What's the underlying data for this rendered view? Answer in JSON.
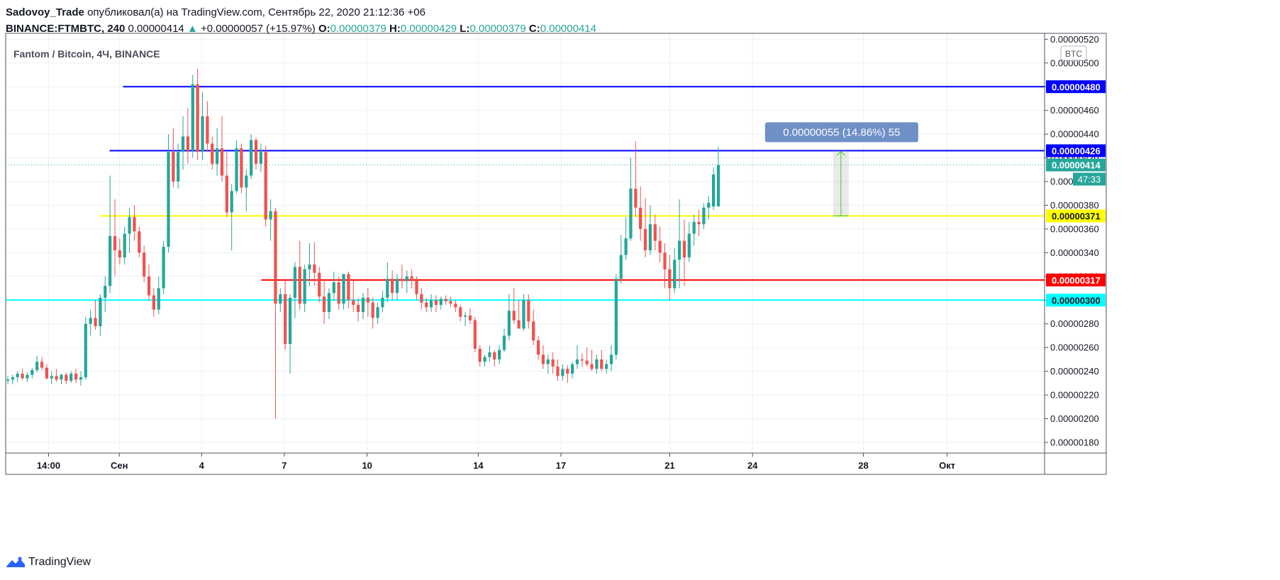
{
  "header": {
    "author": "Sadovoy_Trade",
    "published_text": "опубликовал(а) на TradingView.com, Сентябрь 22, 2020 21:12:36 +06",
    "symbol": "BINANCE:FTMBTC, 240",
    "last_price": "0.00000414",
    "change_arrow": "▲",
    "change": "+0.00000057 (+15.97%)",
    "o_label": "O:",
    "o_value": "0.00000379",
    "h_label": "H:",
    "h_value": "0.00000429",
    "l_label": "L:",
    "l_value": "0.00000379",
    "c_label": "C:",
    "c_value": "0.00000414"
  },
  "legend_title": "Fantom / Bitcoin, 4Ч, BINANCE",
  "currency_badge": "BTC",
  "measure_label": "0.00000055 (14.86%) 55",
  "countdown": "47:33",
  "footer": {
    "brand": "TradingView",
    "logo_icon": "tradingview-logo-icon"
  },
  "colors": {
    "up": "#26a69a",
    "down": "#ef5350",
    "blue_line": "#0000ff",
    "yellow_line": "#ffff00",
    "red_line": "#ff0000",
    "cyan_line": "#00ffff",
    "measure": "#6f8fc7"
  },
  "chart_data": {
    "type": "candlestick",
    "title": "Fantom / Bitcoin, 4Ч, BINANCE",
    "y_axis": {
      "ticks": [
        "0.00000180",
        "0.00000200",
        "0.00000220",
        "0.00000240",
        "0.00000260",
        "0.00000280",
        "0.00000300",
        "0.00000320",
        "0.00000340",
        "0.00000360",
        "0.00000380",
        "0.00000400",
        "0.00000420",
        "0.00000440",
        "0.00000460",
        "0.00000480",
        "0.00000500",
        "0.00000520"
      ],
      "range": [
        1.71e-06,
        5.25e-06
      ],
      "position": "right"
    },
    "x_axis": {
      "ticks": [
        {
          "label": "14:00",
          "x": 0.0413
        },
        {
          "label": "Сен",
          "x": 0.1094
        },
        {
          "label": "4",
          "x": 0.1886
        },
        {
          "label": "7",
          "x": 0.2682
        },
        {
          "label": "10",
          "x": 0.3479
        },
        {
          "label": "14",
          "x": 0.4549
        },
        {
          "label": "17",
          "x": 0.5345
        },
        {
          "label": "21",
          "x": 0.6392
        },
        {
          "label": "24",
          "x": 0.7189
        },
        {
          "label": "28",
          "x": 0.8256
        },
        {
          "label": "Окт",
          "x": 0.9062
        }
      ]
    },
    "horizontal_levels": [
      {
        "value": 4.8e-06,
        "label": "0.00000480",
        "color": "#0000ff",
        "start_x": 0.113
      },
      {
        "value": 4.26e-06,
        "label": "0.00000426",
        "color": "#0000ff",
        "start_x": 0.1
      },
      {
        "value": 3.71e-06,
        "label": "0.00000371",
        "color": "#ffff00",
        "start_x": 0.091
      },
      {
        "value": 3.17e-06,
        "label": "0.00000317",
        "color": "#ff0000",
        "start_x": 0.246
      },
      {
        "value": 3e-06,
        "label": "0.00000300",
        "color": "#00ffff",
        "start_x": 0.0
      }
    ],
    "last_price": {
      "value": 4.14e-06,
      "label": "0.00000414",
      "color": "#26a69a"
    },
    "price_range_measure": {
      "from": 3.71e-06,
      "to": 4.26e-06,
      "x_from": 0.7966,
      "x_to": 0.8114,
      "label": "0.00000055 (14.86%) 55"
    },
    "candles": [
      [
        2.32e-06,
        2.36e-06,
        2.29e-06,
        2.33e-06
      ],
      [
        2.33e-06,
        2.37e-06,
        2.29e-06,
        2.35e-06
      ],
      [
        2.35e-06,
        2.4e-06,
        2.31e-06,
        2.38e-06
      ],
      [
        2.38e-06,
        2.42e-06,
        2.33e-06,
        2.34e-06
      ],
      [
        2.34e-06,
        2.39e-06,
        2.31e-06,
        2.37e-06
      ],
      [
        2.37e-06,
        2.43e-06,
        2.34e-06,
        2.41e-06
      ],
      [
        2.41e-06,
        2.53e-06,
        2.39e-06,
        2.48e-06
      ],
      [
        2.48e-06,
        2.52e-06,
        2.41e-06,
        2.43e-06
      ],
      [
        2.43e-06,
        2.46e-06,
        2.33e-06,
        2.34e-06
      ],
      [
        2.34e-06,
        2.4e-06,
        2.29e-06,
        2.36e-06
      ],
      [
        2.36e-06,
        2.42e-06,
        2.31e-06,
        2.33e-06
      ],
      [
        2.33e-06,
        2.38e-06,
        2.29e-06,
        2.37e-06
      ],
      [
        2.37e-06,
        2.39e-06,
        2.29e-06,
        2.32e-06
      ],
      [
        2.32e-06,
        2.4e-06,
        2.3e-06,
        2.38e-06
      ],
      [
        2.38e-06,
        2.42e-06,
        2.3e-06,
        2.33e-06
      ],
      [
        2.33e-06,
        2.4e-06,
        2.28e-06,
        2.35e-06
      ],
      [
        2.35e-06,
        2.86e-06,
        2.33e-06,
        2.8e-06
      ],
      [
        2.8e-06,
        2.92e-06,
        2.7e-06,
        2.85e-06
      ],
      [
        2.85e-06,
        3e-06,
        2.75e-06,
        2.78e-06
      ],
      [
        2.78e-06,
        3.05e-06,
        2.7e-06,
        3.02e-06
      ],
      [
        3.02e-06,
        3.2e-06,
        2.9e-06,
        3.12e-06
      ],
      [
        3.12e-06,
        4.05e-06,
        3.06e-06,
        3.54e-06
      ],
      [
        3.54e-06,
        3.85e-06,
        3.2e-06,
        3.42e-06
      ],
      [
        3.42e-06,
        3.52e-06,
        3.3e-06,
        3.36e-06
      ],
      [
        3.36e-06,
        3.62e-06,
        3.3e-06,
        3.56e-06
      ],
      [
        3.56e-06,
        3.78e-06,
        3.4e-06,
        3.7e-06
      ],
      [
        3.7e-06,
        3.8e-06,
        3.5e-06,
        3.58e-06
      ],
      [
        3.58e-06,
        3.62e-06,
        3.36e-06,
        3.4e-06
      ],
      [
        3.4e-06,
        3.46e-06,
        3.15e-06,
        3.2e-06
      ],
      [
        3.2e-06,
        3.3e-06,
        3e-06,
        3.04e-06
      ],
      [
        3.04e-06,
        3.1e-06,
        2.86e-06,
        2.92e-06
      ],
      [
        2.92e-06,
        3.2e-06,
        2.88e-06,
        3.1e-06
      ],
      [
        3.1e-06,
        3.5e-06,
        3.05e-06,
        3.45e-06
      ],
      [
        3.45e-06,
        4.4e-06,
        3.4e-06,
        4.25e-06
      ],
      [
        4.25e-06,
        4.45e-06,
        3.95e-06,
        4e-06
      ],
      [
        4e-06,
        4.32e-06,
        3.94e-06,
        4.25e-06
      ],
      [
        4.25e-06,
        4.55e-06,
        4.1e-06,
        4.38e-06
      ],
      [
        4.38e-06,
        4.62e-06,
        4.15e-06,
        4.26e-06
      ],
      [
        4.26e-06,
        4.9e-06,
        4.2e-06,
        4.82e-06
      ],
      [
        4.82e-06,
        4.95e-06,
        4.18e-06,
        4.25e-06
      ],
      [
        4.25e-06,
        4.75e-06,
        4.18e-06,
        4.55e-06
      ],
      [
        4.55e-06,
        4.68e-06,
        4.25e-06,
        4.32e-06
      ],
      [
        4.32e-06,
        4.38e-06,
        4.1e-06,
        4.15e-06
      ],
      [
        4.15e-06,
        4.45e-06,
        4.05e-06,
        4.28e-06
      ],
      [
        4.28e-06,
        4.55e-06,
        4e-06,
        4.05e-06
      ],
      [
        4.05e-06,
        4.25e-06,
        3.7e-06,
        3.74e-06
      ],
      [
        3.74e-06,
        3.98e-06,
        3.42e-06,
        3.92e-06
      ],
      [
        3.92e-06,
        4.35e-06,
        3.9e-06,
        4.28e-06
      ],
      [
        4.28e-06,
        4.32e-06,
        3.9e-06,
        3.95e-06
      ],
      [
        3.95e-06,
        4.1e-06,
        3.75e-06,
        4.05e-06
      ],
      [
        4.05e-06,
        4.4e-06,
        4.02e-06,
        4.35e-06
      ],
      [
        4.35e-06,
        4.37e-06,
        4.1e-06,
        4.15e-06
      ],
      [
        4.15e-06,
        4.32e-06,
        4.08e-06,
        4.25e-06
      ],
      [
        4.25e-06,
        4.3e-06,
        3.62e-06,
        3.68e-06
      ],
      [
        3.68e-06,
        3.85e-06,
        3.5e-06,
        3.75e-06
      ],
      [
        3.75e-06,
        3.78e-06,
        2e-06,
        2.97e-06
      ],
      [
        2.97e-06,
        3.1e-06,
        2.9e-06,
        3.05e-06
      ],
      [
        3.05e-06,
        3.18e-06,
        2.58e-06,
        2.63e-06
      ],
      [
        2.63e-06,
        3.05e-06,
        2.38e-06,
        3.02e-06
      ],
      [
        3.02e-06,
        3.32e-06,
        2.85e-06,
        3.28e-06
      ],
      [
        3.28e-06,
        3.5e-06,
        2.92e-06,
        2.97e-06
      ],
      [
        2.97e-06,
        3.3e-06,
        2.9e-06,
        3.26e-06
      ],
      [
        3.26e-06,
        3.48e-06,
        3.12e-06,
        3.3e-06
      ],
      [
        3.3e-06,
        3.49e-06,
        3.12e-06,
        3.23e-06
      ],
      [
        3.23e-06,
        3.28e-06,
        2.98e-06,
        3.03e-06
      ],
      [
        3.03e-06,
        3.16e-06,
        2.8e-06,
        2.9e-06
      ],
      [
        2.9e-06,
        3.1e-06,
        2.84e-06,
        3.06e-06
      ],
      [
        3.06e-06,
        3.24e-06,
        3e-06,
        3.15e-06
      ],
      [
        3.15e-06,
        3.2e-06,
        2.92e-06,
        2.97e-06
      ],
      [
        2.97e-06,
        3.22e-06,
        2.92e-06,
        3.22e-06
      ],
      [
        3.22e-06,
        3.24e-06,
        2.93e-06,
        3e-06
      ],
      [
        3e-06,
        3.18e-06,
        2.9e-06,
        2.96e-06
      ],
      [
        2.96e-06,
        3.02e-06,
        2.82e-06,
        2.9e-06
      ],
      [
        2.9e-06,
        3.06e-06,
        2.84e-06,
        3.02e-06
      ],
      [
        3.02e-06,
        3.1e-06,
        2.86e-06,
        2.98e-06
      ],
      [
        2.98e-06,
        3.02e-06,
        2.76e-06,
        2.85e-06
      ],
      [
        2.85e-06,
        2.98e-06,
        2.8e-06,
        2.94e-06
      ],
      [
        2.94e-06,
        3.08e-06,
        2.9e-06,
        3.02e-06
      ],
      [
        3.02e-06,
        3.32e-06,
        2.98e-06,
        3.18e-06
      ],
      [
        3.18e-06,
        3.25e-06,
        3e-06,
        3.06e-06
      ],
      [
        3.06e-06,
        3.22e-06,
        3e-06,
        3.18e-06
      ],
      [
        3.18e-06,
        3.3e-06,
        3.1e-06,
        3.16e-06
      ],
      [
        3.16e-06,
        3.25e-06,
        3.06e-06,
        3.2e-06
      ],
      [
        3.2e-06,
        3.26e-06,
        3.1e-06,
        3.18e-06
      ],
      [
        3.18e-06,
        3.2e-06,
        3e-06,
        3.05e-06
      ],
      [
        3.05e-06,
        3.1e-06,
        2.92e-06,
        2.98e-06
      ],
      [
        2.98e-06,
        3.02e-06,
        2.9e-06,
        2.94e-06
      ],
      [
        2.94e-06,
        3.05e-06,
        2.9e-06,
        3e-06
      ],
      [
        3e-06,
        3.04e-06,
        2.9e-06,
        2.96e-06
      ],
      [
        2.96e-06,
        3.03e-06,
        2.92e-06,
        3.01e-06
      ],
      [
        3.01e-06,
        3.04e-06,
        2.96e-06,
        2.99e-06
      ],
      [
        2.99e-06,
        3.03e-06,
        2.94e-06,
        2.97e-06
      ],
      [
        2.97e-06,
        3e-06,
        2.9e-06,
        2.94e-06
      ],
      [
        2.94e-06,
        2.96e-06,
        2.82e-06,
        2.86e-06
      ],
      [
        2.86e-06,
        2.9e-06,
        2.78e-06,
        2.87e-06
      ],
      [
        2.87e-06,
        2.93e-06,
        2.8e-06,
        2.83e-06
      ],
      [
        2.83e-06,
        2.86e-06,
        2.56e-06,
        2.59e-06
      ],
      [
        2.59e-06,
        2.62e-06,
        2.44e-06,
        2.48e-06
      ],
      [
        2.48e-06,
        2.54e-06,
        2.44e-06,
        2.52e-06
      ],
      [
        2.52e-06,
        2.62e-06,
        2.48e-06,
        2.56e-06
      ],
      [
        2.56e-06,
        2.58e-06,
        2.44e-06,
        2.5e-06
      ],
      [
        2.5e-06,
        2.62e-06,
        2.46e-06,
        2.58e-06
      ],
      [
        2.58e-06,
        2.76e-06,
        2.56e-06,
        2.7e-06
      ],
      [
        2.7e-06,
        3.05e-06,
        2.66e-06,
        2.91e-06
      ],
      [
        2.91e-06,
        3.1e-06,
        2.8e-06,
        2.83e-06
      ],
      [
        2.83e-06,
        3e-06,
        2.76e-06,
        2.76e-06
      ],
      [
        2.76e-06,
        3.05e-06,
        2.74e-06,
        3e-06
      ],
      [
        3e-06,
        3.05e-06,
        2.76e-06,
        2.82e-06
      ],
      [
        2.82e-06,
        2.92e-06,
        2.62e-06,
        2.66e-06
      ],
      [
        2.66e-06,
        2.7e-06,
        2.5e-06,
        2.54e-06
      ],
      [
        2.54e-06,
        2.62e-06,
        2.42e-06,
        2.46e-06
      ],
      [
        2.46e-06,
        2.54e-06,
        2.38e-06,
        2.5e-06
      ],
      [
        2.5e-06,
        2.56e-06,
        2.38e-06,
        2.44e-06
      ],
      [
        2.44e-06,
        2.5e-06,
        2.32e-06,
        2.36e-06
      ],
      [
        2.36e-06,
        2.46e-06,
        2.32e-06,
        2.42e-06
      ],
      [
        2.42e-06,
        2.45e-06,
        2.3e-06,
        2.38e-06
      ],
      [
        2.38e-06,
        2.48e-06,
        2.34e-06,
        2.46e-06
      ],
      [
        2.46e-06,
        2.62e-06,
        2.42e-06,
        2.5e-06
      ],
      [
        2.5e-06,
        2.55e-06,
        2.44e-06,
        2.49e-06
      ],
      [
        2.49e-06,
        2.6e-06,
        2.44e-06,
        2.46e-06
      ],
      [
        2.46e-06,
        2.58e-06,
        2.4e-06,
        2.42e-06
      ],
      [
        2.42e-06,
        2.54e-06,
        2.38e-06,
        2.5e-06
      ],
      [
        2.5e-06,
        2.58e-06,
        2.4e-06,
        2.42e-06
      ],
      [
        2.42e-06,
        2.5e-06,
        2.38e-06,
        2.46e-06
      ],
      [
        2.46e-06,
        2.62e-06,
        2.4e-06,
        2.54e-06
      ],
      [
        2.54e-06,
        3.22e-06,
        2.5e-06,
        3.18e-06
      ],
      [
        3.18e-06,
        3.55e-06,
        3.14e-06,
        3.38e-06
      ],
      [
        3.38e-06,
        3.7e-06,
        3.34e-06,
        3.52e-06
      ],
      [
        3.52e-06,
        4.2e-06,
        3.5e-06,
        3.94e-06
      ],
      [
        3.94e-06,
        4.34e-06,
        3.7e-06,
        3.78e-06
      ],
      [
        3.78e-06,
        3.96e-06,
        3.5e-06,
        3.6e-06
      ],
      [
        3.6e-06,
        3.86e-06,
        3.36e-06,
        3.42e-06
      ],
      [
        3.42e-06,
        3.8e-06,
        3.38e-06,
        3.64e-06
      ],
      [
        3.64e-06,
        3.72e-06,
        3.42e-06,
        3.5e-06
      ],
      [
        3.5e-06,
        3.62e-06,
        3.32e-06,
        3.4e-06
      ],
      [
        3.4e-06,
        3.48e-06,
        3.1e-06,
        3.26e-06
      ],
      [
        3.26e-06,
        3.38e-06,
        3e-06,
        3.1e-06
      ],
      [
        3.1e-06,
        3.44e-06,
        3.06e-06,
        3.34e-06
      ],
      [
        3.34e-06,
        3.85e-06,
        3.1e-06,
        3.5e-06
      ],
      [
        3.5e-06,
        3.68e-06,
        3.12e-06,
        3.36e-06
      ],
      [
        3.36e-06,
        3.66e-06,
        3.32e-06,
        3.56e-06
      ],
      [
        3.56e-06,
        3.72e-06,
        3.46e-06,
        3.66e-06
      ],
      [
        3.66e-06,
        3.76e-06,
        3.54e-06,
        3.64e-06
      ],
      [
        3.64e-06,
        3.82e-06,
        3.6e-06,
        3.78e-06
      ],
      [
        3.78e-06,
        3.88e-06,
        3.68e-06,
        3.82e-06
      ],
      [
        3.79e-06,
        4.12e-06,
        3.76e-06,
        4.06e-06
      ],
      [
        3.79e-06,
        4.29e-06,
        3.79e-06,
        4.14e-06
      ]
    ]
  }
}
